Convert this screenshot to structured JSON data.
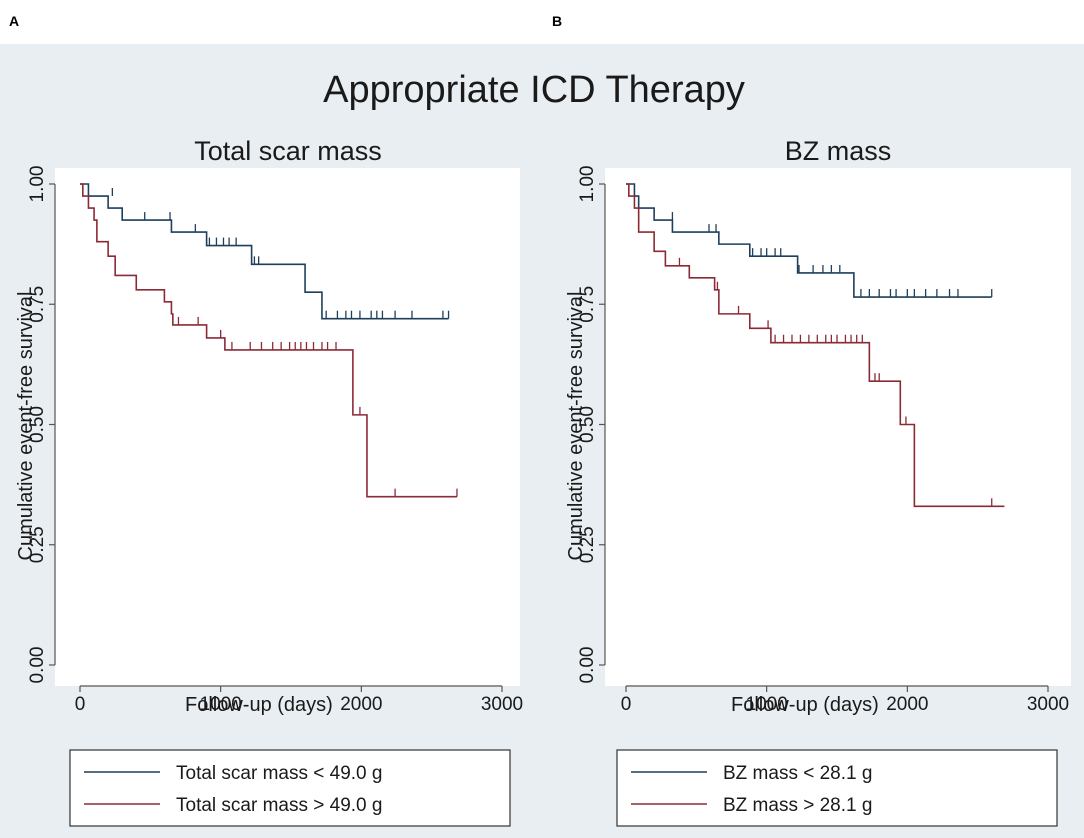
{
  "labels": {
    "panel_a": "A",
    "panel_b": "B"
  },
  "figure_title": "Appropriate ICD Therapy",
  "colors": {
    "group_low": "#1f3f5b",
    "group_high": "#8b2a35",
    "background": "#e8eef1",
    "plot_bg": "#ffffff",
    "axis": "#555555"
  },
  "chart_data": [
    {
      "type": "line",
      "subtype": "kaplan-meier",
      "title": "Total scar mass",
      "xlabel": "Follow-up (days)",
      "ylabel": "Cumulative event-free survival",
      "xlim": [
        0,
        3000
      ],
      "ylim": [
        0,
        1
      ],
      "xticks": [
        0,
        1000,
        2000,
        3000
      ],
      "yticks": [
        0,
        0.25,
        0.5,
        0.75,
        1
      ],
      "xtick_labels": [
        "0",
        "1000",
        "2000",
        "3000"
      ],
      "ytick_labels": [
        "0.00",
        "0.25",
        "0.50",
        "0.75",
        "1.00"
      ],
      "legend_position": "bottom",
      "series": [
        {
          "name": "Total scar mass < 49.0 g",
          "color_key": "group_low",
          "steps": [
            [
              0,
              1.0
            ],
            [
              60,
              0.975
            ],
            [
              200,
              0.95
            ],
            [
              300,
              0.925
            ],
            [
              650,
              0.9
            ],
            [
              900,
              0.872
            ],
            [
              1220,
              0.833
            ],
            [
              1600,
              0.775
            ],
            [
              1720,
              0.72
            ],
            [
              2620,
              0.72
            ]
          ],
          "censors": [
            [
              230,
              0.975
            ],
            [
              460,
              0.925
            ],
            [
              640,
              0.925
            ],
            [
              820,
              0.9
            ],
            [
              920,
              0.872
            ],
            [
              970,
              0.872
            ],
            [
              1020,
              0.872
            ],
            [
              1060,
              0.872
            ],
            [
              1110,
              0.872
            ],
            [
              1240,
              0.833
            ],
            [
              1270,
              0.833
            ],
            [
              1750,
              0.72
            ],
            [
              1830,
              0.72
            ],
            [
              1890,
              0.72
            ],
            [
              1930,
              0.72
            ],
            [
              1990,
              0.72
            ],
            [
              2070,
              0.72
            ],
            [
              2110,
              0.72
            ],
            [
              2150,
              0.72
            ],
            [
              2240,
              0.72
            ],
            [
              2360,
              0.72
            ],
            [
              2580,
              0.72
            ],
            [
              2620,
              0.72
            ]
          ]
        },
        {
          "name": "Total scar mass > 49.0 g",
          "color_key": "group_high",
          "steps": [
            [
              0,
              1.0
            ],
            [
              20,
              0.975
            ],
            [
              60,
              0.95
            ],
            [
              100,
              0.925
            ],
            [
              120,
              0.88
            ],
            [
              200,
              0.85
            ],
            [
              250,
              0.81
            ],
            [
              400,
              0.78
            ],
            [
              600,
              0.755
            ],
            [
              650,
              0.73
            ],
            [
              660,
              0.707
            ],
            [
              900,
              0.68
            ],
            [
              1030,
              0.655
            ],
            [
              1940,
              0.52
            ],
            [
              2040,
              0.35
            ],
            [
              2680,
              0.35
            ]
          ],
          "censors": [
            [
              700,
              0.707
            ],
            [
              840,
              0.707
            ],
            [
              1000,
              0.68
            ],
            [
              1080,
              0.655
            ],
            [
              1210,
              0.655
            ],
            [
              1290,
              0.655
            ],
            [
              1370,
              0.655
            ],
            [
              1430,
              0.655
            ],
            [
              1490,
              0.655
            ],
            [
              1530,
              0.655
            ],
            [
              1570,
              0.655
            ],
            [
              1610,
              0.655
            ],
            [
              1660,
              0.655
            ],
            [
              1720,
              0.655
            ],
            [
              1760,
              0.655
            ],
            [
              1820,
              0.655
            ],
            [
              1990,
              0.52
            ],
            [
              2240,
              0.35
            ],
            [
              2680,
              0.35
            ]
          ]
        }
      ]
    },
    {
      "type": "line",
      "subtype": "kaplan-meier",
      "title": "BZ mass",
      "xlabel": "Follow-up (days)",
      "ylabel": "Cumulative event-free survival",
      "xlim": [
        0,
        3000
      ],
      "ylim": [
        0,
        1
      ],
      "xticks": [
        0,
        1000,
        2000,
        3000
      ],
      "yticks": [
        0,
        0.25,
        0.5,
        0.75,
        1
      ],
      "xtick_labels": [
        "0",
        "1000",
        "2000",
        "3000"
      ],
      "ytick_labels": [
        "0.00",
        "0.25",
        "0.50",
        "0.75",
        "1.00"
      ],
      "legend_position": "bottom",
      "series": [
        {
          "name": "BZ mass < 28.1 g",
          "color_key": "group_low",
          "steps": [
            [
              0,
              1.0
            ],
            [
              60,
              0.975
            ],
            [
              90,
              0.95
            ],
            [
              200,
              0.925
            ],
            [
              330,
              0.9
            ],
            [
              660,
              0.875
            ],
            [
              880,
              0.85
            ],
            [
              1220,
              0.815
            ],
            [
              1620,
              0.765
            ],
            [
              2600,
              0.765
            ]
          ],
          "censors": [
            [
              330,
              0.925
            ],
            [
              590,
              0.9
            ],
            [
              640,
              0.9
            ],
            [
              900,
              0.85
            ],
            [
              960,
              0.85
            ],
            [
              1000,
              0.85
            ],
            [
              1060,
              0.85
            ],
            [
              1100,
              0.85
            ],
            [
              1230,
              0.815
            ],
            [
              1330,
              0.815
            ],
            [
              1400,
              0.815
            ],
            [
              1460,
              0.815
            ],
            [
              1520,
              0.815
            ],
            [
              1670,
              0.765
            ],
            [
              1730,
              0.765
            ],
            [
              1800,
              0.765
            ],
            [
              1880,
              0.765
            ],
            [
              1920,
              0.765
            ],
            [
              2000,
              0.765
            ],
            [
              2050,
              0.765
            ],
            [
              2130,
              0.765
            ],
            [
              2210,
              0.765
            ],
            [
              2300,
              0.765
            ],
            [
              2360,
              0.765
            ],
            [
              2600,
              0.765
            ]
          ]
        },
        {
          "name": "BZ mass > 28.1 g",
          "color_key": "group_high",
          "steps": [
            [
              0,
              1.0
            ],
            [
              20,
              0.975
            ],
            [
              60,
              0.95
            ],
            [
              90,
              0.9
            ],
            [
              200,
              0.86
            ],
            [
              280,
              0.83
            ],
            [
              450,
              0.805
            ],
            [
              630,
              0.78
            ],
            [
              660,
              0.73
            ],
            [
              880,
              0.7
            ],
            [
              1030,
              0.67
            ],
            [
              1730,
              0.59
            ],
            [
              1950,
              0.5
            ],
            [
              2050,
              0.33
            ],
            [
              2690,
              0.33
            ]
          ],
          "censors": [
            [
              380,
              0.83
            ],
            [
              650,
              0.78
            ],
            [
              800,
              0.73
            ],
            [
              1010,
              0.7
            ],
            [
              1060,
              0.67
            ],
            [
              1120,
              0.67
            ],
            [
              1180,
              0.67
            ],
            [
              1240,
              0.67
            ],
            [
              1300,
              0.67
            ],
            [
              1360,
              0.67
            ],
            [
              1420,
              0.67
            ],
            [
              1460,
              0.67
            ],
            [
              1500,
              0.67
            ],
            [
              1560,
              0.67
            ],
            [
              1600,
              0.67
            ],
            [
              1640,
              0.67
            ],
            [
              1680,
              0.67
            ],
            [
              1770,
              0.59
            ],
            [
              1800,
              0.59
            ],
            [
              1990,
              0.5
            ],
            [
              2600,
              0.33
            ]
          ]
        }
      ]
    }
  ]
}
